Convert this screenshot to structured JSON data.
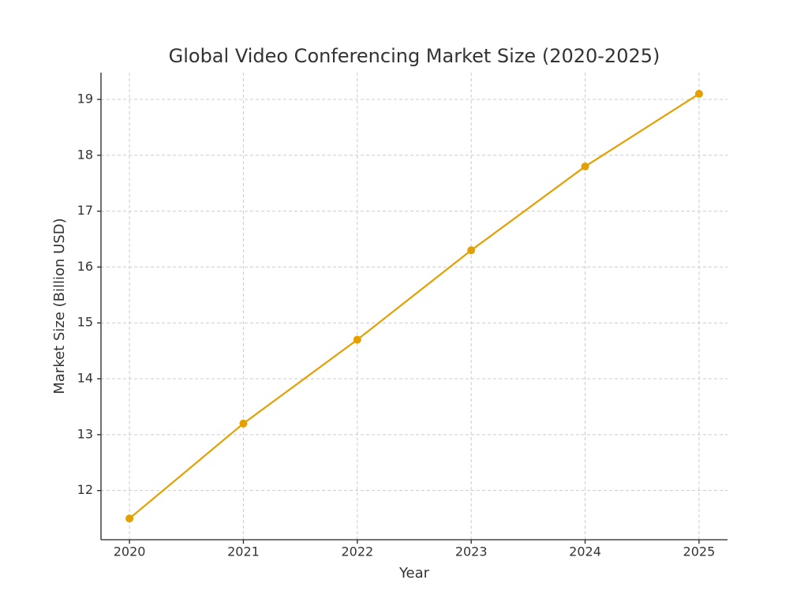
{
  "chart_data": {
    "type": "line",
    "title": "Global Video Conferencing Market Size (2020-2025)",
    "x_label": "Year",
    "y_label": "Market Size (Billion USD)",
    "x": [
      2020,
      2021,
      2022,
      2023,
      2024,
      2025
    ],
    "series": [
      {
        "color": "#e69f00",
        "values": [
          11.5,
          13.2,
          14.7,
          16.3,
          17.8,
          19.1
        ]
      }
    ],
    "xlim": [
      2019.75,
      2025.25
    ],
    "xticks": [
      2020,
      2021,
      2022,
      2023,
      2024,
      2025
    ],
    "ylim": [
      11.12,
      19.48
    ],
    "yticks": [
      12,
      13,
      14,
      15,
      16,
      17,
      18,
      19
    ],
    "grid": true,
    "markers": true
  }
}
